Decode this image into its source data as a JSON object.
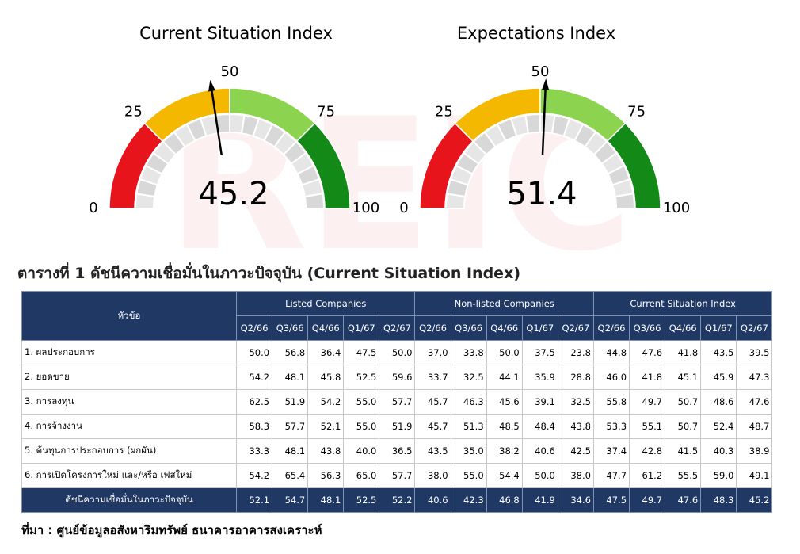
{
  "watermark": "REIC",
  "gauges": [
    {
      "title": "Current Situation Index",
      "value": 45.2,
      "ticks": [
        0,
        25,
        50,
        75,
        100
      ]
    },
    {
      "title": "Expectations   Index",
      "value": 51.4,
      "ticks": [
        0,
        25,
        50,
        75,
        100
      ]
    }
  ],
  "table": {
    "caption": "ตารางที่ 1 ดัชนีความเชื่อมั่นในภาวะปัจจุบัน (Current Situation Index)",
    "topic_header": "หัวข้อ",
    "groups": [
      "Listed Companies",
      "Non-listed Companies",
      "Current Situation Index"
    ],
    "quarters": [
      "Q2/66",
      "Q3/66",
      "Q4/66",
      "Q1/67",
      "Q2/67"
    ],
    "rows": [
      {
        "label": "1. ผลประกอบการ",
        "values": [
          "50.0",
          "56.8",
          "36.4",
          "47.5",
          "50.0",
          "37.0",
          "33.8",
          "50.0",
          "37.5",
          "23.8",
          "44.8",
          "47.6",
          "41.8",
          "43.5",
          "39.5"
        ]
      },
      {
        "label": "2. ยอดขาย",
        "values": [
          "54.2",
          "48.1",
          "45.8",
          "52.5",
          "59.6",
          "33.7",
          "32.5",
          "44.1",
          "35.9",
          "28.8",
          "46.0",
          "41.8",
          "45.1",
          "45.9",
          "47.3"
        ]
      },
      {
        "label": "3. การลงทุน",
        "values": [
          "62.5",
          "51.9",
          "54.2",
          "55.0",
          "57.7",
          "45.7",
          "46.3",
          "45.6",
          "39.1",
          "32.5",
          "55.8",
          "49.7",
          "50.7",
          "48.6",
          "47.6"
        ]
      },
      {
        "label": "4. การจ้างงาน",
        "values": [
          "58.3",
          "57.7",
          "52.1",
          "55.0",
          "51.9",
          "45.7",
          "51.3",
          "48.5",
          "48.4",
          "43.8",
          "53.3",
          "55.1",
          "50.7",
          "52.4",
          "48.7"
        ]
      },
      {
        "label": "5. ต้นทุนการประกอบการ (ผกผัน)",
        "values": [
          "33.3",
          "48.1",
          "43.8",
          "40.0",
          "36.5",
          "43.5",
          "35.0",
          "38.2",
          "40.6",
          "42.5",
          "37.4",
          "42.8",
          "41.5",
          "40.3",
          "38.9"
        ]
      },
      {
        "label": "6. การเปิดโครงการใหม่ และ/หรือ เฟสใหม่",
        "values": [
          "54.2",
          "65.4",
          "56.3",
          "65.0",
          "57.7",
          "38.0",
          "55.0",
          "54.4",
          "50.0",
          "38.0",
          "47.7",
          "61.2",
          "55.5",
          "59.0",
          "49.1"
        ]
      }
    ],
    "total": {
      "label": "ดัชนีความเชื่อมั่นในภาวะปัจจุบัน",
      "values": [
        "52.1",
        "54.7",
        "48.1",
        "52.5",
        "52.2",
        "40.6",
        "42.3",
        "46.8",
        "41.9",
        "34.6",
        "47.5",
        "49.7",
        "47.6",
        "48.3",
        "45.2"
      ]
    }
  },
  "source": "ที่มา : ศูนย์ข้อมูลอสังหาริมทรัพย์ ธนาคารอาคารสงเคราะห์"
}
